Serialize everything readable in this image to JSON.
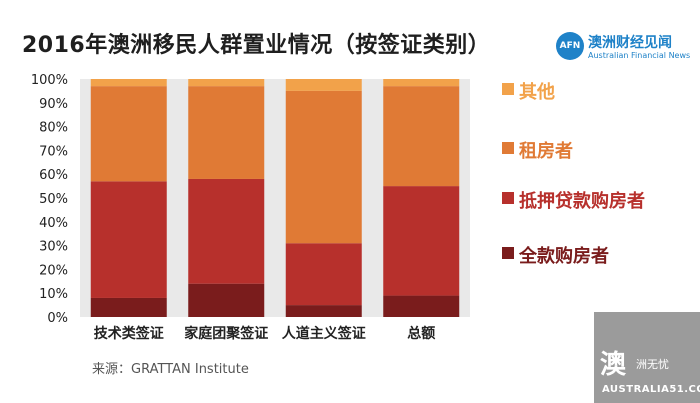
{
  "title": "2016年澳洲移民人群置业情况（按签证类别）",
  "brand": {
    "badge": "AFN",
    "name": "澳洲财经见闻",
    "sub": "Australian Financial News"
  },
  "source": "来源：GRATTAN Institute",
  "corner_logo": {
    "main": "澳",
    "cn": "洲无忧",
    "url": "AUSTRALIA51.COM"
  },
  "chart_data": {
    "type": "bar",
    "stacked": true,
    "categories": [
      "技术类签证",
      "家庭团聚签证",
      "人道主义签证",
      "总额"
    ],
    "yticks": [
      "0%",
      "10%",
      "20%",
      "30%",
      "40%",
      "50%",
      "60%",
      "70%",
      "80%",
      "90%",
      "100%"
    ],
    "ylim": [
      0,
      100
    ],
    "grid": false,
    "legend_position": "right",
    "series": [
      {
        "name": "全款购房者",
        "color": "#7a1c1c",
        "values": [
          8,
          14,
          5,
          9
        ]
      },
      {
        "name": "抵押贷款购房者",
        "color": "#b7302c",
        "values": [
          49,
          44,
          26,
          46
        ]
      },
      {
        "name": "租房者",
        "color": "#e07a35",
        "values": [
          40,
          39,
          64,
          42
        ]
      },
      {
        "name": "其他",
        "color": "#f2a24a",
        "values": [
          3,
          3,
          5,
          3
        ]
      }
    ]
  }
}
